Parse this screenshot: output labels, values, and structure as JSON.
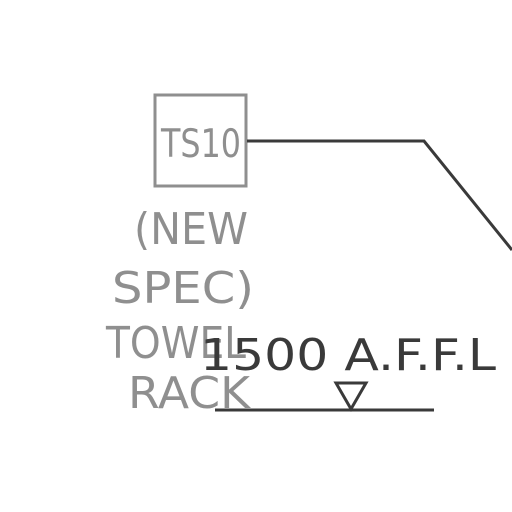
{
  "tag": {
    "code": "TS10",
    "description_lines": [
      "(NEW",
      "SPEC)",
      "TOWEL",
      "RACK"
    ]
  },
  "level": {
    "label": "1500  A.F.F.L"
  },
  "colors": {
    "background": "#ffffff",
    "tag_box": "#8f8f8f",
    "tag_text": "#8f8f8f",
    "leader_line": "#3a3a3a",
    "level_text": "#3a3a3a",
    "level_marker": "#3a3a3a"
  }
}
